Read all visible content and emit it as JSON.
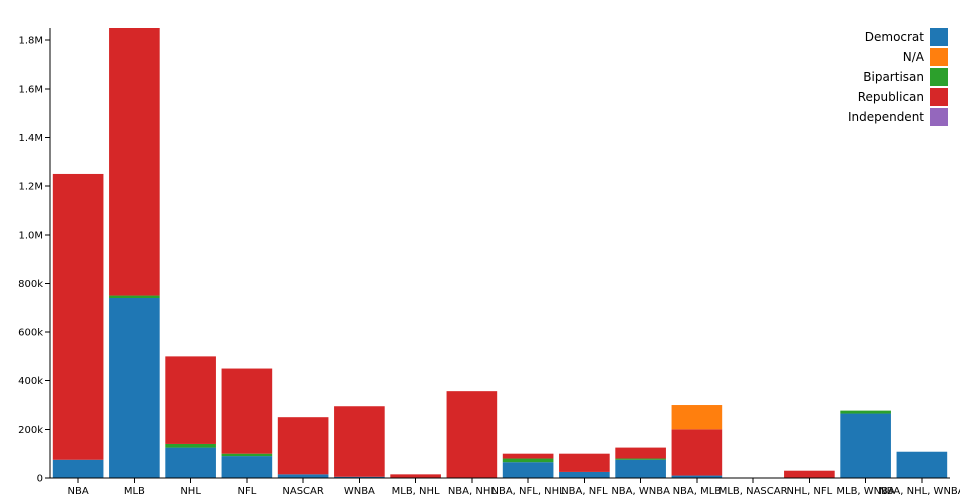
{
  "chart_data": {
    "type": "bar",
    "stacked": true,
    "categories": [
      "NBA",
      "MLB",
      "NHL",
      "NFL",
      "NASCAR",
      "WNBA",
      "MLB, NHL",
      "NBA, NHL",
      "NBA, NFL, NHL",
      "NBA, NFL",
      "NBA, WNBA",
      "NBA, MLB",
      "MLB, NASCAR",
      "NHL, NFL",
      "MLB, WNBA",
      "NBA, NHL, WNBA"
    ],
    "series": [
      {
        "name": "Democrat",
        "color": "#1f77b4",
        "values": [
          75000,
          740000,
          125000,
          90000,
          15000,
          5000,
          0,
          0,
          65000,
          25000,
          75000,
          10000,
          0,
          0,
          265000,
          108000
        ]
      },
      {
        "name": "N/A",
        "color": "#ff7f0e",
        "values": [
          0,
          0,
          0,
          0,
          0,
          0,
          0,
          0,
          0,
          0,
          0,
          100000,
          0,
          0,
          0,
          0
        ]
      },
      {
        "name": "Bipartisan",
        "color": "#2ca02c",
        "values": [
          0,
          10000,
          15000,
          10000,
          0,
          0,
          0,
          0,
          15000,
          0,
          5000,
          0,
          0,
          0,
          12000,
          0
        ]
      },
      {
        "name": "Republican",
        "color": "#d62728",
        "values": [
          1175000,
          1100000,
          360000,
          350000,
          235000,
          290000,
          15000,
          357000,
          20000,
          75000,
          45000,
          190000,
          0,
          30000,
          0,
          0
        ]
      },
      {
        "name": "Independent",
        "color": "#9467bd",
        "values": [
          0,
          0,
          0,
          0,
          0,
          0,
          0,
          0,
          0,
          0,
          0,
          0,
          0,
          0,
          0,
          0
        ]
      }
    ],
    "stack_order": [
      "Democrat",
      "Bipartisan",
      "Republican",
      "N/A",
      "Independent"
    ],
    "y_ticks": [
      {
        "value": 0,
        "label": "0"
      },
      {
        "value": 200000,
        "label": "200k"
      },
      {
        "value": 400000,
        "label": "400k"
      },
      {
        "value": 600000,
        "label": "600k"
      },
      {
        "value": 800000,
        "label": "800k"
      },
      {
        "value": 1000000,
        "label": "1.0M"
      },
      {
        "value": 1200000,
        "label": "1.2M"
      },
      {
        "value": 1400000,
        "label": "1.4M"
      },
      {
        "value": 1600000,
        "label": "1.6M"
      },
      {
        "value": 1800000,
        "label": "1.8M"
      }
    ],
    "ylim": [
      0,
      1850000
    ],
    "title": "",
    "xlabel": "",
    "ylabel": "",
    "legend_position": "top-right",
    "grid": false
  }
}
